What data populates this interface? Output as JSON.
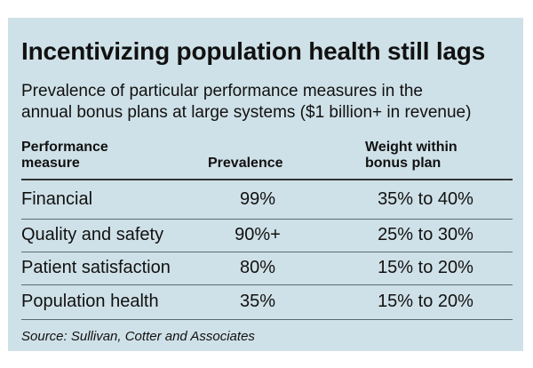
{
  "title": "Incentivizing population health still lags",
  "subtitle_line1": "Prevalence of particular performance measures in the",
  "subtitle_line2": "annual bonus plans at large systems ($1 billion+ in revenue)",
  "headers": {
    "measure_line1": "Performance",
    "measure_line2": "measure",
    "prevalence": "Prevalence",
    "weight_line1": "Weight within",
    "weight_line2": "bonus plan"
  },
  "rows": [
    {
      "measure": "Financial",
      "prevalence": "99%",
      "weight": "35% to 40%"
    },
    {
      "measure": "Quality and safety",
      "prevalence": "90%+",
      "weight": "25% to 30%"
    },
    {
      "measure": "Patient satisfaction",
      "prevalence": "80%",
      "weight": "15% to 20%"
    },
    {
      "measure": "Population health",
      "prevalence": "35%",
      "weight": "15% to 20%"
    }
  ],
  "source": "Source: Sullivan, Cotter and Associates",
  "chart_data": {
    "type": "table",
    "title": "Incentivizing population health still lags",
    "columns": [
      "Performance measure",
      "Prevalence",
      "Weight within bonus plan"
    ],
    "rows": [
      [
        "Financial",
        "99%",
        "35% to 40%"
      ],
      [
        "Quality and safety",
        "90%+",
        "25% to 30%"
      ],
      [
        "Patient satisfaction",
        "80%",
        "15% to 20%"
      ],
      [
        "Population health",
        "35%",
        "15% to 20%"
      ]
    ]
  }
}
